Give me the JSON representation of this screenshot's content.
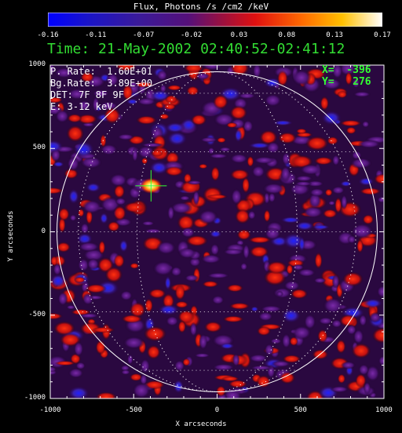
{
  "colorbar": {
    "title": "Flux, Photons /s /cm2 /keV",
    "ticks": [
      "-0.16",
      "-0.11",
      "-0.07",
      "-0.02",
      "0.03",
      "0.08",
      "0.13",
      "0.17"
    ]
  },
  "time_label": "Time: 21-May-2002 02:40:52-02:41:12",
  "info": {
    "p_rate": "P. Rate:  1.60E+01",
    "bg_rate": "Bg.Rate:  3.89E+00",
    "det": "DET: 7F 8F 9F",
    "energy": "E: 3-12 keV"
  },
  "cursor": {
    "x_label": "X=  -396",
    "y_label": "Y=   276"
  },
  "axes": {
    "xlabel": "X arcseconds",
    "ylabel": "Y arcseconds",
    "xticks": [
      "-1000",
      "-500",
      "0",
      "500",
      "1000"
    ],
    "yticks": [
      "1000",
      "500",
      "0",
      "-500",
      "-1000"
    ],
    "xlim": [
      -1000,
      1000
    ],
    "ylim": [
      -1000,
      1000
    ]
  },
  "colors": {
    "time_text": "#33dd33",
    "cursor_text": "#33ff33",
    "crosshair": "#33ff33"
  },
  "chart_data": {
    "type": "heatmap",
    "title": "Flux, Photons /s /cm2 /keV",
    "xlabel": "X arcseconds",
    "ylabel": "Y arcseconds",
    "xlim": [
      -1000,
      1000
    ],
    "ylim": [
      -1000,
      1000
    ],
    "zlim": [
      -0.16,
      0.17
    ],
    "solar_disk_radius": 960,
    "grid": true,
    "source": {
      "x": -396,
      "y": 276
    }
  }
}
